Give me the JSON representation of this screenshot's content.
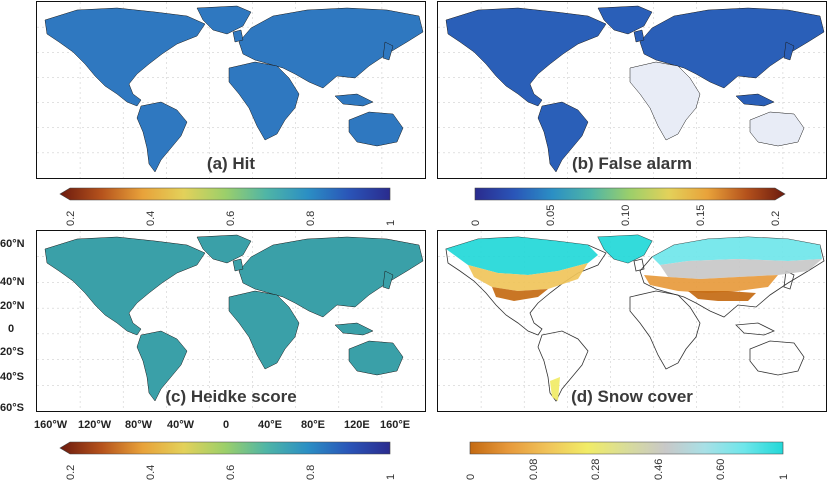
{
  "panels": {
    "a": {
      "label": "(a) Hit"
    },
    "b": {
      "label": "(b) False alarm"
    },
    "c": {
      "label": "(c) Heidke score"
    },
    "d": {
      "label": "(d) Snow cover"
    }
  },
  "lat_labels": [
    "60°N",
    "40°N",
    "20°N",
    "0",
    "20°S",
    "40°S",
    "60°S"
  ],
  "lon_labels": [
    "160°W",
    "120°W",
    "80°W",
    "40°W",
    "0",
    "40°E",
    "80°E",
    "120E",
    "160°E"
  ],
  "colorbars": {
    "hit": {
      "ticks": [
        "0.2",
        "0.4",
        "0.6",
        "0.8",
        "1"
      ],
      "colors": [
        "#6b1a0e",
        "#b5521c",
        "#e8a23a",
        "#e3d15a",
        "#9ccf6a",
        "#4fb5a6",
        "#2b8fc4",
        "#2a55b8",
        "#2a2b8e"
      ]
    },
    "false_alarm": {
      "ticks": [
        "0",
        "0.05",
        "0.10",
        "0.15",
        "0.2"
      ],
      "colors": [
        "#2a2b8e",
        "#2a55b8",
        "#2b8fc4",
        "#4fb5a6",
        "#9ccf6a",
        "#e3d15a",
        "#e8a23a",
        "#b5521c",
        "#6b1a0e"
      ]
    },
    "heidke": {
      "ticks": [
        "0.2",
        "0.4",
        "0.6",
        "0.8",
        "1"
      ],
      "colors": [
        "#6b1a0e",
        "#b5521c",
        "#e8a23a",
        "#e3d15a",
        "#9ccf6a",
        "#4fb5a6",
        "#2b8fc4",
        "#2a55b8",
        "#2a2b8e"
      ]
    },
    "snow": {
      "ticks": [
        "0",
        "0.08",
        "0.28",
        "0.46",
        "0.60",
        "1"
      ],
      "colors": [
        "#c46a12",
        "#e79a3c",
        "#f0c45a",
        "#f1ec66",
        "#d8dc9a",
        "#c8c8c8",
        "#a8e0e6",
        "#6fe6ea",
        "#22d8d8"
      ]
    }
  }
}
